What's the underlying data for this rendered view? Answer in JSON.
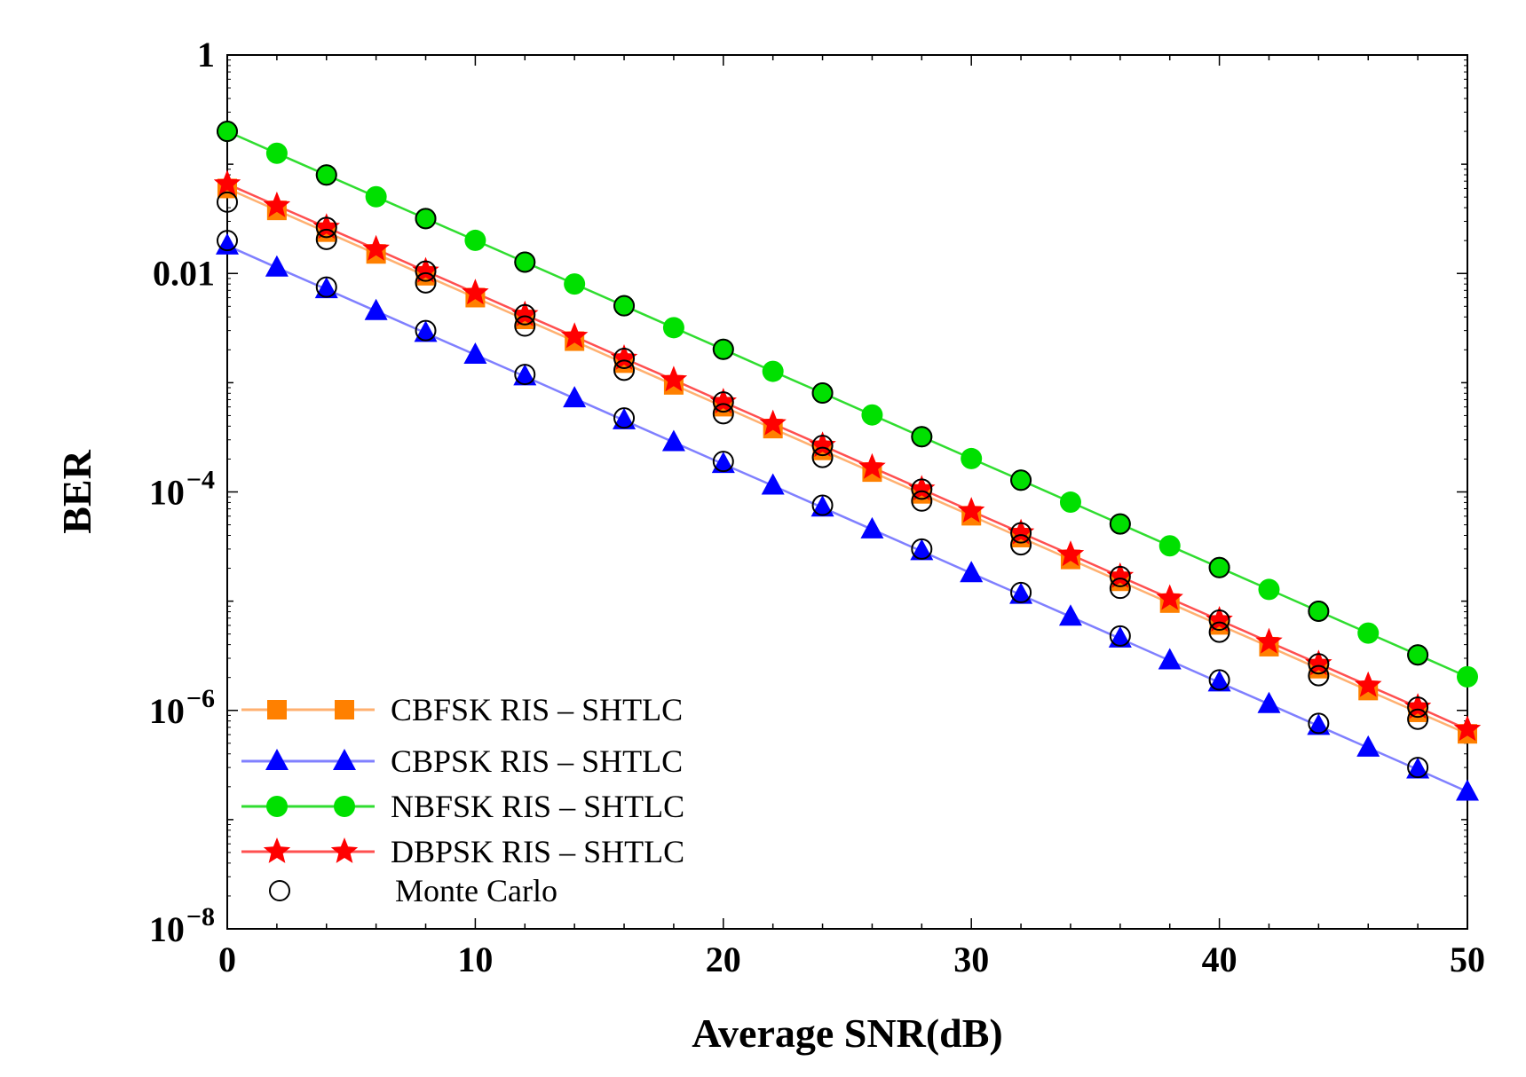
{
  "chart_data": {
    "type": "line",
    "title": "",
    "xlabel": "Average SNR(dB)",
    "ylabel": "BER",
    "xlim": [
      0,
      50
    ],
    "ylim": [
      1e-08,
      1
    ],
    "yscale": "log",
    "grid": false,
    "legend_position": "bottom-left",
    "x_ticks": [
      {
        "value": 0,
        "label": "0"
      },
      {
        "value": 10,
        "label": "10"
      },
      {
        "value": 20,
        "label": "20"
      },
      {
        "value": 30,
        "label": "30"
      },
      {
        "value": 40,
        "label": "40"
      },
      {
        "value": 50,
        "label": "50"
      }
    ],
    "y_ticks": [
      {
        "value": 1,
        "base": "1",
        "exp": ""
      },
      {
        "value": 0.01,
        "base": "0.01",
        "exp": ""
      },
      {
        "value": 0.0001,
        "base": "10",
        "exp": "−4"
      },
      {
        "value": 1e-06,
        "base": "10",
        "exp": "−6"
      },
      {
        "value": 1e-08,
        "base": "10",
        "exp": "−8"
      }
    ],
    "series": [
      {
        "name": "CBFSK RIS – SHTLC",
        "color": "#ff8000",
        "line_color": "#ffb070",
        "marker": "square",
        "x": [
          0,
          2,
          4,
          6,
          8,
          10,
          12,
          14,
          16,
          18,
          20,
          22,
          24,
          26,
          28,
          30,
          32,
          34,
          36,
          38,
          40,
          42,
          44,
          46,
          48,
          50
        ],
        "y": [
          0.06,
          0.0378,
          0.0239,
          0.0151,
          0.00953,
          0.00601,
          0.0038,
          0.0024,
          0.00151,
          0.000955,
          0.000603,
          0.00038,
          0.00024,
          0.000152,
          9.6e-05,
          6.05e-05,
          3.82e-05,
          2.41e-05,
          1.52e-05,
          9.6e-06,
          6.06e-06,
          3.83e-06,
          2.41e-06,
          1.52e-06,
          9.6e-07,
          6.1e-07
        ]
      },
      {
        "name": "CBPSK RIS – SHTLC",
        "color": "#0000ff",
        "line_color": "#8080ff",
        "marker": "triangle",
        "x": [
          0,
          2,
          4,
          6,
          8,
          10,
          12,
          14,
          16,
          18,
          20,
          22,
          24,
          26,
          28,
          30,
          32,
          34,
          36,
          38,
          40,
          42,
          44,
          46,
          48,
          50
        ],
        "y": [
          0.018,
          0.0113,
          0.00716,
          0.00452,
          0.00285,
          0.0018,
          0.00114,
          0.000717,
          0.000452,
          0.000285,
          0.00018,
          0.000114,
          7.18e-05,
          4.53e-05,
          2.86e-05,
          1.8e-05,
          1.14e-05,
          7.2e-06,
          4.54e-06,
          2.86e-06,
          1.8e-06,
          1.14e-06,
          7.2e-07,
          4.55e-07,
          2.87e-07,
          1.8e-07
        ]
      },
      {
        "name": "NBFSK RIS – SHTLC",
        "color": "#00e000",
        "line_color": "#30dd30",
        "marker": "circle",
        "x": [
          0,
          2,
          4,
          6,
          8,
          10,
          12,
          14,
          16,
          18,
          20,
          22,
          24,
          26,
          28,
          30,
          32,
          34,
          36,
          38,
          40,
          42,
          44,
          46,
          48,
          50
        ],
        "y": [
          0.2,
          0.126,
          0.0797,
          0.0504,
          0.0318,
          0.0201,
          0.0127,
          0.00801,
          0.00506,
          0.00319,
          0.00202,
          0.00127,
          0.000804,
          0.000507,
          0.00032,
          0.000202,
          0.000128,
          8.06e-05,
          5.09e-05,
          3.21e-05,
          2.03e-05,
          1.28e-05,
          8.09e-06,
          5.1e-06,
          3.22e-06,
          2.03e-06
        ]
      },
      {
        "name": "DBPSK RIS – SHTLC",
        "color": "#ff0000",
        "line_color": "#ff5050",
        "marker": "star",
        "x": [
          0,
          2,
          4,
          6,
          8,
          10,
          12,
          14,
          16,
          18,
          20,
          22,
          24,
          26,
          28,
          30,
          32,
          34,
          36,
          38,
          40,
          42,
          44,
          46,
          48,
          50
        ],
        "y": [
          0.066,
          0.0417,
          0.0264,
          0.0167,
          0.0105,
          0.00664,
          0.00419,
          0.00265,
          0.00167,
          0.00106,
          0.000666,
          0.000421,
          0.000266,
          0.000168,
          0.000106,
          6.68e-05,
          4.22e-05,
          2.67e-05,
          1.68e-05,
          1.06e-05,
          6.7e-06,
          4.23e-06,
          2.67e-06,
          1.69e-06,
          1.07e-06,
          6.7e-07
        ]
      },
      {
        "name": "Monte Carlo",
        "color": "#000000",
        "line_color": "",
        "marker": "open-circle",
        "x": [
          0,
          4,
          8,
          12,
          16,
          20,
          24,
          28,
          32,
          36,
          40,
          44,
          48,
          0,
          4,
          8,
          12,
          16,
          20,
          24,
          28,
          32,
          36,
          40,
          44,
          48,
          0,
          4,
          8,
          12,
          16,
          20,
          24,
          28,
          32,
          36,
          40,
          44,
          48,
          4,
          8,
          12,
          16,
          20,
          24,
          28,
          32,
          36,
          40,
          44,
          48
        ],
        "y": [
          0.2,
          0.0797,
          0.0318,
          0.0127,
          0.00506,
          0.00202,
          0.000804,
          0.00032,
          0.000128,
          5.09e-05,
          2.03e-05,
          8.09e-06,
          3.22e-06,
          0.045,
          0.0205,
          0.0082,
          0.0033,
          0.0013,
          0.00052,
          0.000207,
          8.25e-05,
          3.28e-05,
          1.31e-05,
          5.2e-06,
          2.08e-06,
          8.3e-07,
          0.02,
          0.0075,
          0.003,
          0.00119,
          0.000475,
          0.00019,
          7.55e-05,
          3e-05,
          1.2e-05,
          4.8e-06,
          1.9e-06,
          7.6e-07,
          3e-07,
          0.0264,
          0.0105,
          0.00419,
          0.00167,
          0.000666,
          0.000266,
          0.000106,
          4.22e-05,
          1.68e-05,
          6.7e-06,
          2.67e-06,
          1.07e-06
        ]
      }
    ]
  }
}
